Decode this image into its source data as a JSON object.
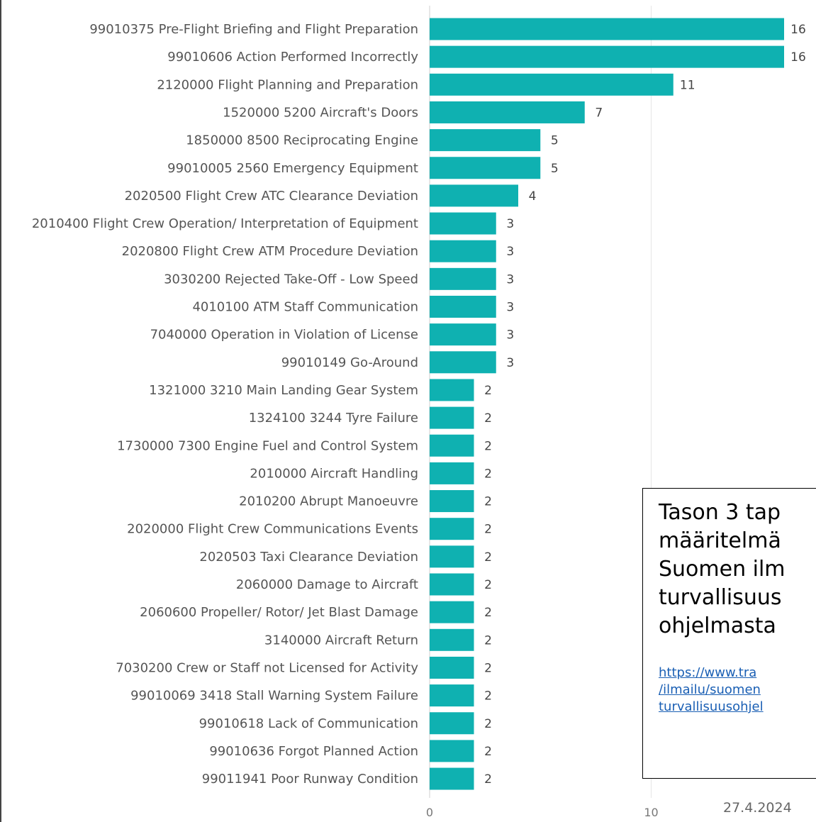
{
  "chart_data": {
    "type": "bar",
    "orientation": "horizontal",
    "color": "#0fb1b1",
    "categories": [
      "99010375 Pre-Flight Briefing and Flight Preparation",
      "99010606 Action Performed Incorrectly",
      "2120000 Flight Planning and Preparation",
      "1520000 5200 Aircraft's Doors",
      "1850000 8500 Reciprocating Engine",
      "99010005 2560 Emergency Equipment",
      "2020500 Flight Crew ATC Clearance Deviation",
      "2010400 Flight Crew Operation/ Interpretation of Equipment",
      "2020800 Flight Crew ATM Procedure Deviation",
      "3030200 Rejected Take-Off - Low Speed",
      "4010100 ATM Staff Communication",
      "7040000 Operation in Violation of License",
      "99010149 Go-Around",
      "1321000 3210 Main Landing Gear System",
      "1324100 3244 Tyre Failure",
      "1730000 7300 Engine Fuel and Control System",
      "2010000 Aircraft Handling",
      "2010200 Abrupt Manoeuvre",
      "2020000 Flight Crew Communications Events",
      "2020503 Taxi Clearance Deviation",
      "2060000 Damage to Aircraft",
      "2060600 Propeller/ Rotor/ Jet Blast Damage",
      "3140000 Aircraft Return",
      "7030200 Crew or Staff not Licensed for Activity",
      "99010069 3418 Stall Warning System Failure",
      "99010618 Lack of Communication",
      "99010636 Forgot Planned Action",
      "99011941 Poor Runway Condition"
    ],
    "values": [
      16,
      16,
      11,
      7,
      5,
      5,
      4,
      3,
      3,
      3,
      3,
      3,
      3,
      2,
      2,
      2,
      2,
      2,
      2,
      2,
      2,
      2,
      2,
      2,
      2,
      2,
      2,
      2
    ],
    "xticks": [
      0,
      10
    ],
    "xlim": [
      0,
      16
    ],
    "grid": true,
    "data_labels": true
  },
  "note": {
    "text": "Tason 3 tap\nmääritelmä\nSuomen ilm\nturvallisuus\nohjelmasta",
    "link": "https://www.tra\n/ilmailu/suomen\nturvallisuusohjel"
  },
  "footer": {
    "date": "27.4.2024"
  }
}
